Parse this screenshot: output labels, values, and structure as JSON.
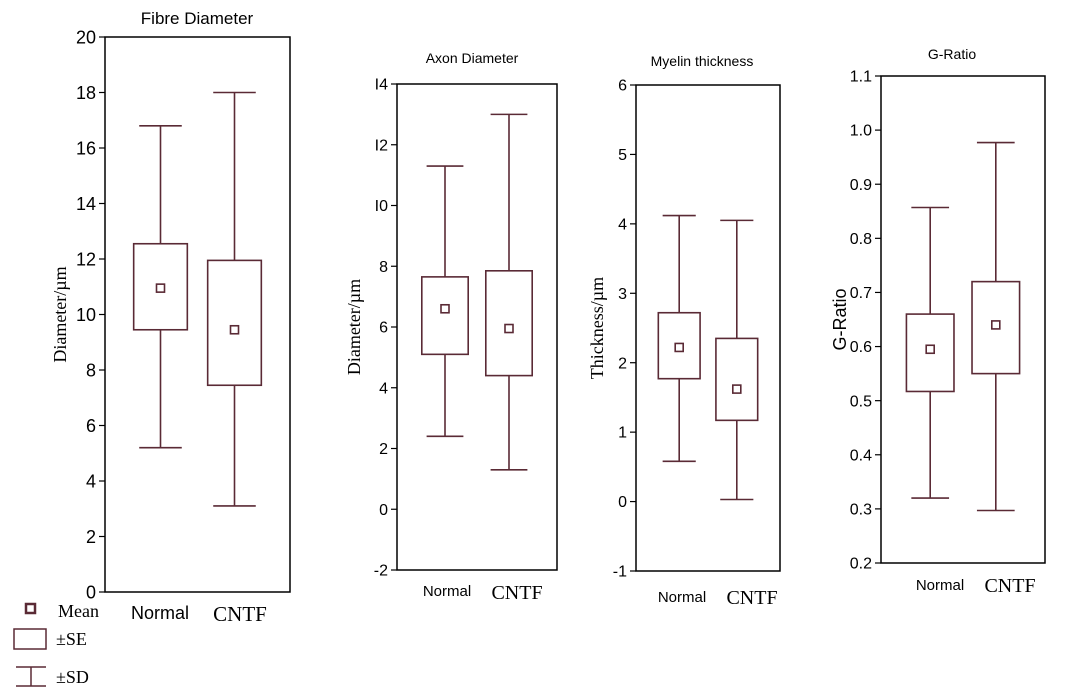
{
  "chart_data": [
    {
      "type": "box",
      "title": "Fibre Diameter",
      "xlabel": "",
      "ylabel": "Diameter/µm",
      "ylim": [
        0,
        20
      ],
      "yticks": [
        0,
        2,
        4,
        6,
        8,
        10,
        12,
        14,
        16,
        18,
        20
      ],
      "ytick_labels": [
        "0",
        "2",
        "4",
        "6",
        "8",
        "10",
        "12",
        "14",
        "16",
        "18",
        "20"
      ],
      "categories": [
        "Normal",
        "CNTF"
      ],
      "series": [
        {
          "category": "Normal",
          "mean": 10.95,
          "se_low": 9.45,
          "se_high": 12.55,
          "sd_low": 5.2,
          "sd_high": 16.8
        },
        {
          "category": "CNTF",
          "mean": 9.45,
          "se_low": 7.45,
          "se_high": 11.95,
          "sd_low": 3.1,
          "sd_high": 18.0
        }
      ]
    },
    {
      "type": "box",
      "title": "Axon Diameter",
      "xlabel": "",
      "ylabel": "Diameter/µm",
      "ylim": [
        -2,
        14
      ],
      "yticks": [
        -2,
        0,
        2,
        4,
        6,
        8,
        10,
        12,
        14
      ],
      "ytick_labels": [
        "-2",
        "0",
        "2",
        "4",
        "6",
        "8",
        "I0",
        "I2",
        "I4"
      ],
      "categories": [
        "Normal",
        "CNTF"
      ],
      "series": [
        {
          "category": "Normal",
          "mean": 6.6,
          "se_low": 5.1,
          "se_high": 7.65,
          "sd_low": 2.4,
          "sd_high": 11.3
        },
        {
          "category": "CNTF",
          "mean": 5.95,
          "se_low": 4.4,
          "se_high": 7.85,
          "sd_low": 1.3,
          "sd_high": 13.0
        }
      ]
    },
    {
      "type": "box",
      "title": "Myelin thickness",
      "xlabel": "",
      "ylabel": "Thickness/µm",
      "ylim": [
        -1,
        6
      ],
      "yticks": [
        -1,
        0,
        1,
        2,
        3,
        4,
        5,
        6
      ],
      "ytick_labels": [
        "-1",
        "0",
        "1",
        "2",
        "3",
        "4",
        "5",
        "6"
      ],
      "categories": [
        "Normal",
        "CNTF"
      ],
      "series": [
        {
          "category": "Normal",
          "mean": 2.22,
          "se_low": 1.77,
          "se_high": 2.72,
          "sd_low": 0.58,
          "sd_high": 4.12
        },
        {
          "category": "CNTF",
          "mean": 1.62,
          "se_low": 1.17,
          "se_high": 2.35,
          "sd_low": 0.03,
          "sd_high": 4.05
        }
      ]
    },
    {
      "type": "box",
      "title": "G-Ratio",
      "xlabel": "",
      "ylabel": "G-Ratio",
      "ylim": [
        0.2,
        1.1
      ],
      "yticks": [
        0.2,
        0.3,
        0.4,
        0.5,
        0.6,
        0.7,
        0.8,
        0.9,
        1.0,
        1.1
      ],
      "ytick_labels": [
        "0.2",
        "0.3",
        "0.4",
        "0.5",
        "0.6",
        "0.7",
        "0.8",
        "0.9",
        "1.0",
        "1.1"
      ],
      "categories": [
        "Normal",
        "CNTF"
      ],
      "series": [
        {
          "category": "Normal",
          "mean": 0.595,
          "se_low": 0.517,
          "se_high": 0.66,
          "sd_low": 0.32,
          "sd_high": 0.857
        },
        {
          "category": "CNTF",
          "mean": 0.64,
          "se_low": 0.55,
          "se_high": 0.72,
          "sd_low": 0.297,
          "sd_high": 0.977
        }
      ]
    }
  ],
  "legend": {
    "items": [
      {
        "symbol": "mean",
        "label": "Mean"
      },
      {
        "symbol": "se",
        "label": "±SE"
      },
      {
        "symbol": "sd",
        "label": "±SD"
      }
    ]
  },
  "colors": {
    "box": "#5a2a35",
    "axes": "#000000",
    "text": "#000000"
  }
}
